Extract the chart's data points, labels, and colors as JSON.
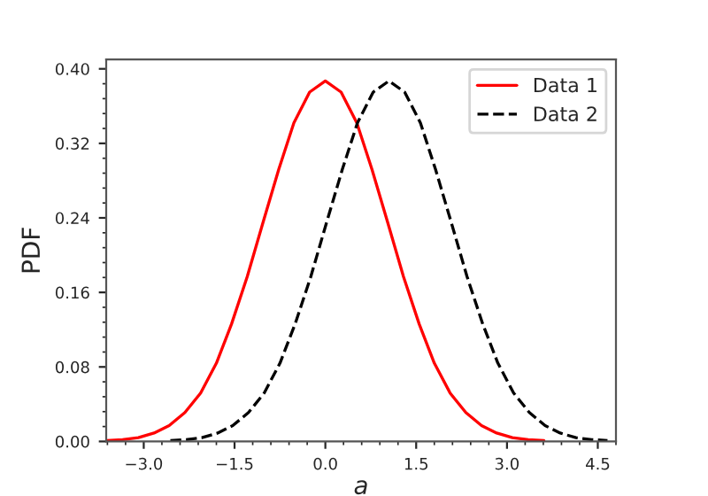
{
  "chart_data": {
    "type": "line",
    "xlabel": "a",
    "ylabel": "PDF",
    "xlim": [
      -3.62,
      4.8
    ],
    "ylim": [
      0,
      0.41
    ],
    "xticks": [
      {
        "value": -3.0,
        "label": "−3.0"
      },
      {
        "value": -1.5,
        "label": "−1.5"
      },
      {
        "value": 0.0,
        "label": "0.0"
      },
      {
        "value": 1.5,
        "label": "1.5"
      },
      {
        "value": 3.0,
        "label": "3.0"
      },
      {
        "value": 4.5,
        "label": "4.5"
      }
    ],
    "yticks": [
      {
        "value": 0,
        "label": "0.00"
      },
      {
        "value": 0.08,
        "label": "0.08"
      },
      {
        "value": 0.16,
        "label": "0.16"
      },
      {
        "value": 0.24,
        "label": "0.24"
      },
      {
        "value": 0.32,
        "label": "0.32"
      },
      {
        "value": 0.4,
        "label": "0.40"
      }
    ],
    "grid": false,
    "legend": "top right",
    "marker": "none",
    "series": [
      {
        "name": "Data 1",
        "color": "#ff0000",
        "line_style": "solid",
        "x": [
          -3.61,
          -3.35,
          -3.09,
          -2.83,
          -2.58,
          -2.32,
          -2.06,
          -1.8,
          -1.55,
          -1.29,
          -1.03,
          -0.77,
          -0.52,
          -0.26,
          0,
          0.26,
          0.52,
          0.77,
          1.03,
          1.29,
          1.55,
          1.8,
          2.06,
          2.32,
          2.58,
          2.83,
          3.09,
          3.35,
          3.61
        ],
        "values": [
          0.001,
          0.002,
          0.004,
          0.009,
          0.017,
          0.031,
          0.052,
          0.084,
          0.126,
          0.177,
          0.235,
          0.292,
          0.342,
          0.375,
          0.387,
          0.375,
          0.342,
          0.292,
          0.235,
          0.177,
          0.126,
          0.084,
          0.052,
          0.031,
          0.017,
          0.009,
          0.004,
          0.002,
          0.001
        ]
      },
      {
        "name": "Data 2",
        "color": "#000000",
        "line_style": "dashed",
        "x": [
          -2.56,
          -2.3,
          -2.04,
          -1.78,
          -1.53,
          -1.27,
          -1.01,
          -0.75,
          -0.5,
          -0.24,
          0.02,
          0.28,
          0.53,
          0.79,
          1.05,
          1.31,
          1.57,
          1.82,
          2.08,
          2.34,
          2.6,
          2.85,
          3.11,
          3.37,
          3.63,
          3.88,
          4.14,
          4.4,
          4.66
        ],
        "values": [
          0.001,
          0.002,
          0.004,
          0.009,
          0.017,
          0.031,
          0.052,
          0.084,
          0.126,
          0.177,
          0.235,
          0.292,
          0.342,
          0.375,
          0.387,
          0.375,
          0.342,
          0.292,
          0.235,
          0.177,
          0.126,
          0.084,
          0.052,
          0.031,
          0.017,
          0.009,
          0.004,
          0.002,
          0.001
        ]
      }
    ]
  }
}
